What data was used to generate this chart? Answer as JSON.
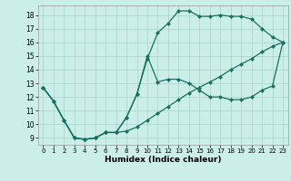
{
  "xlabel": "Humidex (Indice chaleur)",
  "bg_color": "#cceee8",
  "grid_color": "#aad8d0",
  "line_color": "#1a7060",
  "xlim": [
    -0.5,
    23.5
  ],
  "ylim": [
    8.5,
    18.7
  ],
  "xticks": [
    0,
    1,
    2,
    3,
    4,
    5,
    6,
    7,
    8,
    9,
    10,
    11,
    12,
    13,
    14,
    15,
    16,
    17,
    18,
    19,
    20,
    21,
    22,
    23
  ],
  "yticks": [
    9,
    10,
    11,
    12,
    13,
    14,
    15,
    16,
    17,
    18
  ],
  "line1_x": [
    0,
    1,
    2,
    3,
    4,
    5,
    6,
    7,
    8,
    9,
    10,
    11,
    12,
    13,
    14,
    15,
    16,
    17,
    18,
    19,
    20,
    21,
    22,
    23
  ],
  "line1_y": [
    12.7,
    11.7,
    10.3,
    9.0,
    8.9,
    9.0,
    9.4,
    9.4,
    9.5,
    9.8,
    10.3,
    10.8,
    11.3,
    11.8,
    12.3,
    12.7,
    13.1,
    13.5,
    14.0,
    14.4,
    14.8,
    15.3,
    15.7,
    16.0
  ],
  "line2_x": [
    0,
    1,
    2,
    3,
    4,
    5,
    6,
    7,
    8,
    9,
    10,
    11,
    12,
    13,
    14,
    15,
    16,
    17,
    18,
    19,
    20,
    21,
    22,
    23
  ],
  "line2_y": [
    12.7,
    11.7,
    10.3,
    9.0,
    8.9,
    9.0,
    9.4,
    9.4,
    10.5,
    12.2,
    14.8,
    16.7,
    17.4,
    18.3,
    18.3,
    17.9,
    17.9,
    18.0,
    17.9,
    17.9,
    17.7,
    17.0,
    16.4,
    16.0
  ],
  "line3_x": [
    0,
    1,
    2,
    3,
    4,
    5,
    6,
    7,
    8,
    9,
    10,
    11,
    12,
    13,
    14,
    15,
    16,
    17,
    18,
    19,
    20,
    21,
    22,
    23
  ],
  "line3_y": [
    12.7,
    11.7,
    10.3,
    9.0,
    8.9,
    9.0,
    9.4,
    9.4,
    10.5,
    12.2,
    15.0,
    13.1,
    13.3,
    13.3,
    13.0,
    12.5,
    12.0,
    12.0,
    11.8,
    11.8,
    12.0,
    12.5,
    12.8,
    16.0
  ]
}
